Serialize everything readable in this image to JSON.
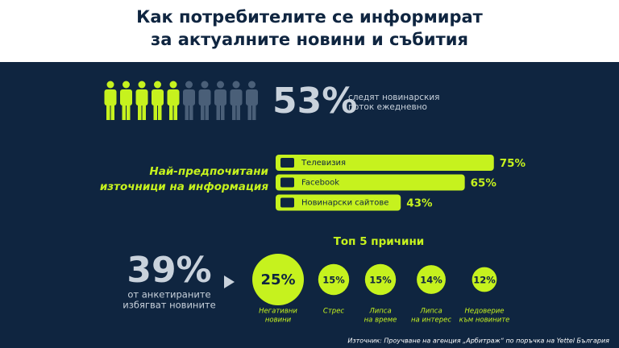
{
  "header": {
    "title_lines": [
      "Как потребителите се информират",
      "за актуалните новини и събития"
    ]
  },
  "daily": {
    "stat": "53%",
    "text_lines": [
      "следят новинарския",
      "поток ежедневно"
    ]
  },
  "sources": {
    "heading_lines": [
      "Най-предпочитани",
      "източници на информация"
    ],
    "items": [
      {
        "name": "Телевизия",
        "value": 75,
        "label": "75%"
      },
      {
        "name": "Facebook",
        "value": 65,
        "label": "65%"
      },
      {
        "name": "Новинарски сайтове",
        "value": 43,
        "label": "43%"
      }
    ]
  },
  "avoid": {
    "stat": "39%",
    "text_lines": [
      "от анкетираните",
      "избягват новините"
    ],
    "reasons_title": "Топ 5 причини",
    "reasons": [
      {
        "value": 25,
        "label": "25%",
        "lines": [
          "Негативни",
          "новини"
        ]
      },
      {
        "value": 15,
        "label": "15%",
        "lines": [
          "Стрес"
        ]
      },
      {
        "value": 15,
        "label": "15%",
        "lines": [
          "Липса",
          "на време"
        ]
      },
      {
        "value": 14,
        "label": "14%",
        "lines": [
          "Липса",
          "на интерес"
        ]
      },
      {
        "value": 12,
        "label": "12%",
        "lines": [
          "Недоверие",
          "към новините"
        ]
      }
    ]
  },
  "source": "Източник: Проучване на агенция „Арбитраж“ по поръчка на Yettel България"
}
